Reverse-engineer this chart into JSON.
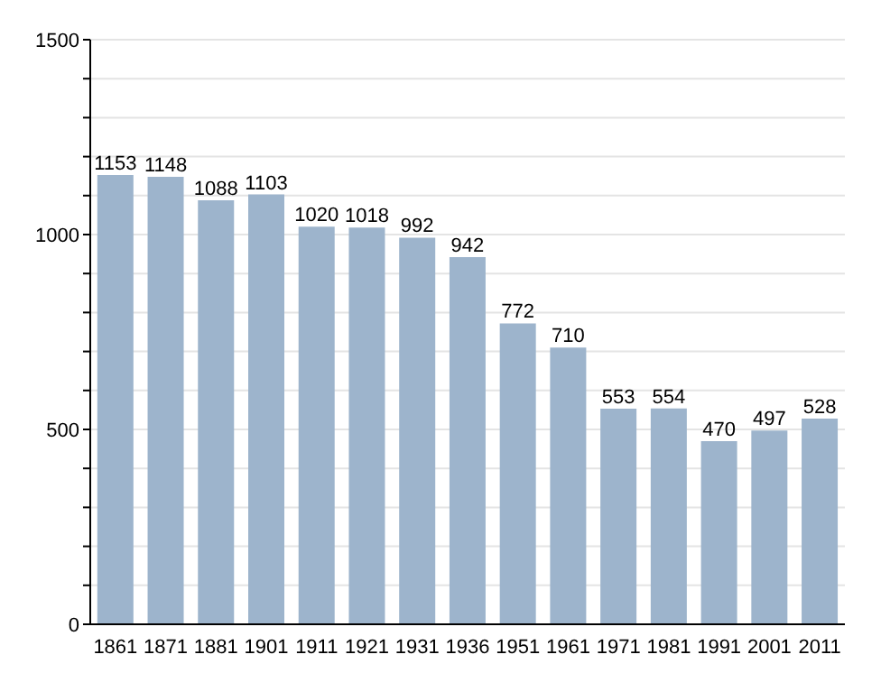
{
  "chart_data": {
    "type": "bar",
    "categories": [
      "1861",
      "1871",
      "1881",
      "1901",
      "1911",
      "1921",
      "1931",
      "1936",
      "1951",
      "1961",
      "1971",
      "1981",
      "1991",
      "2001",
      "2011"
    ],
    "values": [
      1153,
      1148,
      1088,
      1103,
      1020,
      1018,
      992,
      942,
      772,
      710,
      553,
      554,
      470,
      497,
      528
    ],
    "color": "#9db4cc",
    "ylim": [
      0,
      1500
    ],
    "yticks": [
      0,
      {
        "value": 100,
        "label": null
      },
      {
        "value": 200,
        "label": null
      },
      {
        "value": 300,
        "label": null
      },
      {
        "value": 400,
        "label": null
      },
      500,
      {
        "value": 600,
        "label": null
      },
      {
        "value": 700,
        "label": null
      },
      {
        "value": 800,
        "label": null
      },
      {
        "value": 900,
        "label": null
      },
      1000,
      {
        "value": 1100,
        "label": null
      },
      {
        "value": 1200,
        "label": null
      },
      {
        "value": 1300,
        "label": null
      },
      {
        "value": 1400,
        "label": null
      },
      1500
    ],
    "grid": "y",
    "data_labels": true
  }
}
